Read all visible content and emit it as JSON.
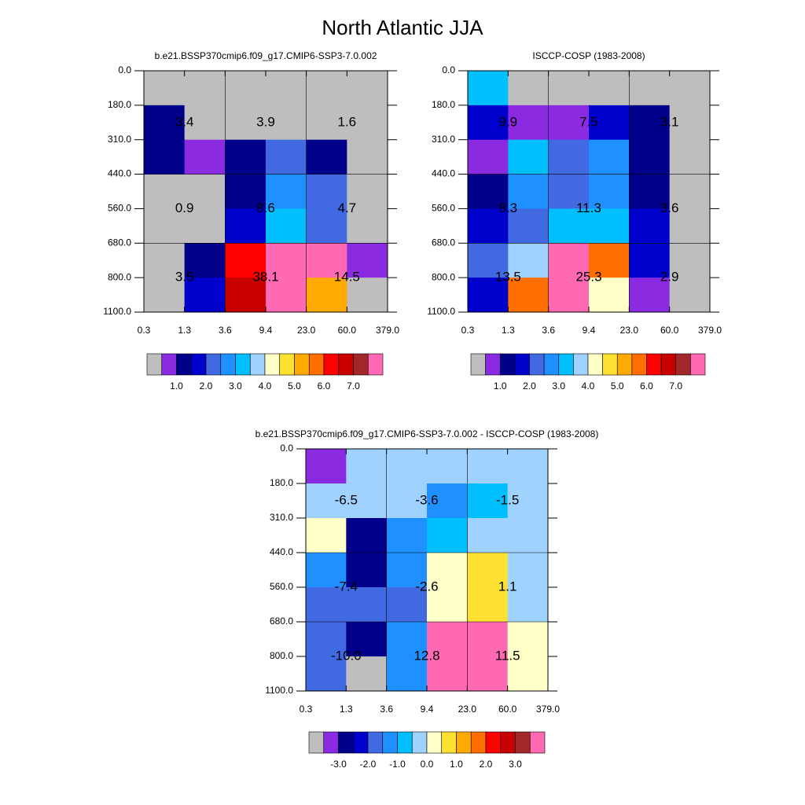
{
  "title": "North Atlantic JJA",
  "chart_data": [
    {
      "type": "heatmap",
      "title": "b.e21.BSSP370cmip6.f09_g17.CMIP6-SSP3-7.0.002",
      "x_edges": [
        "0.3",
        "1.3",
        "3.6",
        "9.4",
        "23.0",
        "60.0",
        "379.0"
      ],
      "y_edges": [
        "0.0",
        "180.0",
        "310.0",
        "440.0",
        "560.0",
        "680.0",
        "800.0",
        "1100.0"
      ],
      "values": [
        [
          0.25,
          0.25,
          0.25,
          0.25,
          0.25,
          0.25
        ],
        [
          1.25,
          0.25,
          0.25,
          0.25,
          0.25,
          0.25
        ],
        [
          1.25,
          0.75,
          1.25,
          2.25,
          1.25,
          0.25
        ],
        [
          0.25,
          0.25,
          1.25,
          2.75,
          2.25,
          0.25
        ],
        [
          0.25,
          0.25,
          1.75,
          3.25,
          2.25,
          0.25
        ],
        [
          0.25,
          1.25,
          6.25,
          7.75,
          7.75,
          0.75
        ],
        [
          0.25,
          1.75,
          6.75,
          7.75,
          5.25,
          0.25
        ]
      ],
      "colors": [
        "#bebebe",
        "#8a2be2",
        "#00008b",
        "#0000cd",
        "#4169e1",
        "#1e90ff",
        "#00bfff",
        "#a0d2ff",
        "#ffffc8",
        "#ffe132",
        "#ffaa00",
        "#ff6e00",
        "#ff0000",
        "#c80000",
        "#a02828",
        "#ff69b4"
      ],
      "levels": [
        0.5,
        1,
        1.5,
        2,
        2.5,
        3,
        3.5,
        4,
        4.5,
        5,
        5.5,
        6,
        6.5,
        7,
        7.5
      ],
      "colorbar_ticks": [
        {
          "value": 1,
          "label": "1.0"
        },
        {
          "value": 2,
          "label": "2.0"
        },
        {
          "value": 3,
          "label": "3.0"
        },
        {
          "value": 4,
          "label": "4.0"
        },
        {
          "value": 5,
          "label": "5.0"
        },
        {
          "value": 6,
          "label": "6.0"
        },
        {
          "value": 7,
          "label": "7.0"
        }
      ],
      "block_values": [
        [
          3.4,
          3.9,
          1.6
        ],
        [
          0.9,
          8.6,
          4.7
        ],
        [
          3.5,
          38.1,
          14.5
        ]
      ]
    },
    {
      "type": "heatmap",
      "title": "ISCCP-COSP (1983-2008)",
      "x_edges": [
        "0.3",
        "1.3",
        "3.6",
        "9.4",
        "23.0",
        "60.0",
        "379.0"
      ],
      "y_edges": [
        "0.0",
        "180.0",
        "310.0",
        "440.0",
        "560.0",
        "680.0",
        "800.0",
        "1100.0"
      ],
      "values": [
        [
          3.25,
          0.25,
          0.25,
          0.25,
          0.25,
          0.25
        ],
        [
          1.75,
          0.75,
          0.75,
          1.75,
          1.25,
          0.25
        ],
        [
          0.75,
          3.25,
          2.25,
          2.75,
          1.25,
          0.25
        ],
        [
          1.25,
          2.75,
          2.25,
          2.75,
          1.25,
          0.25
        ],
        [
          1.75,
          2.25,
          3.25,
          3.25,
          1.75,
          0.25
        ],
        [
          2.25,
          3.75,
          7.75,
          5.75,
          1.75,
          0.25
        ],
        [
          1.75,
          5.75,
          7.75,
          4.25,
          0.75,
          0.25
        ]
      ],
      "colors": [
        "#bebebe",
        "#8a2be2",
        "#00008b",
        "#0000cd",
        "#4169e1",
        "#1e90ff",
        "#00bfff",
        "#a0d2ff",
        "#ffffc8",
        "#ffe132",
        "#ffaa00",
        "#ff6e00",
        "#ff0000",
        "#c80000",
        "#a02828",
        "#ff69b4"
      ],
      "levels": [
        0.5,
        1,
        1.5,
        2,
        2.5,
        3,
        3.5,
        4,
        4.5,
        5,
        5.5,
        6,
        6.5,
        7,
        7.5
      ],
      "colorbar_ticks": [
        {
          "value": 1,
          "label": "1.0"
        },
        {
          "value": 2,
          "label": "2.0"
        },
        {
          "value": 3,
          "label": "3.0"
        },
        {
          "value": 4,
          "label": "4.0"
        },
        {
          "value": 5,
          "label": "5.0"
        },
        {
          "value": 6,
          "label": "6.0"
        },
        {
          "value": 7,
          "label": "7.0"
        }
      ],
      "block_values": [
        [
          9.9,
          7.5,
          3.1
        ],
        [
          8.3,
          11.3,
          3.6
        ],
        [
          13.5,
          25.3,
          2.9
        ]
      ]
    },
    {
      "type": "heatmap",
      "title": "b.e21.BSSP370cmip6.f09_g17.CMIP6-SSP3-7.0.002 - ISCCP-COSP (1983-2008)",
      "x_edges": [
        "0.3",
        "1.3",
        "3.6",
        "9.4",
        "23.0",
        "60.0",
        "379.0"
      ],
      "y_edges": [
        "0.0",
        "180.0",
        "310.0",
        "440.0",
        "560.0",
        "680.0",
        "800.0",
        "1100.0"
      ],
      "values": [
        [
          -3.25,
          -0.25,
          -0.25,
          -0.25,
          -0.25,
          -0.25
        ],
        [
          -0.25,
          -0.25,
          -0.25,
          -1.25,
          -0.75,
          -0.25
        ],
        [
          0.25,
          -2.75,
          -1.25,
          -0.75,
          -0.25,
          -0.25
        ],
        [
          -1.25,
          -2.75,
          -1.25,
          0.25,
          0.75,
          -0.25
        ],
        [
          -1.75,
          -1.75,
          -1.75,
          0.25,
          0.75,
          -0.25
        ],
        [
          -1.75,
          -2.75,
          -1.25,
          3.75,
          3.75,
          0.25
        ],
        [
          -1.75,
          -3.75,
          -1.25,
          3.75,
          3.75,
          0.25
        ]
      ],
      "colors": [
        "#bebebe",
        "#8a2be2",
        "#00008b",
        "#0000cd",
        "#4169e1",
        "#1e90ff",
        "#00bfff",
        "#a0d2ff",
        "#ffffc8",
        "#ffe132",
        "#ffaa00",
        "#ff6e00",
        "#ff0000",
        "#c80000",
        "#a02828",
        "#ff69b4"
      ],
      "levels": [
        -3.5,
        -3,
        -2.5,
        -2,
        -1.5,
        -1,
        -0.5,
        0,
        0.5,
        1,
        1.5,
        2,
        2.5,
        3,
        3.5
      ],
      "colorbar_ticks": [
        {
          "value": -3,
          "label": "-3.0"
        },
        {
          "value": -2,
          "label": "-2.0"
        },
        {
          "value": -1,
          "label": "-1.0"
        },
        {
          "value": 0,
          "label": "0.0"
        },
        {
          "value": 1,
          "label": "1.0"
        },
        {
          "value": 2,
          "label": "2.0"
        },
        {
          "value": 3,
          "label": "3.0"
        }
      ],
      "block_values": [
        [
          -6.5,
          -3.6,
          -1.5
        ],
        [
          -7.4,
          -2.6,
          1.1
        ],
        [
          -10,
          12.8,
          11.5
        ]
      ],
      "block_value_labels": [
        [
          "-6.5",
          "-3.6",
          "-1.5"
        ],
        [
          "-7.4",
          "-2.6",
          "1.1"
        ],
        [
          "-10.0",
          "12.8",
          "11.5"
        ]
      ]
    }
  ]
}
